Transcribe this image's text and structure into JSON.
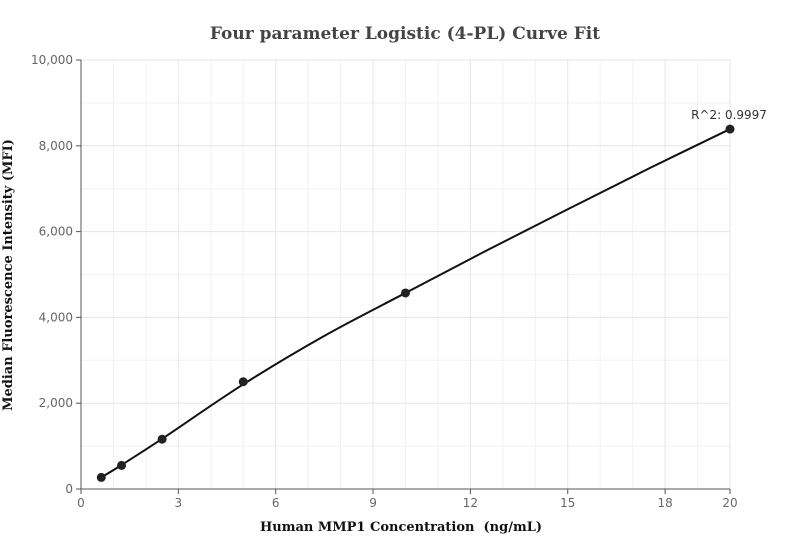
{
  "chart_data": {
    "type": "scatter",
    "title": "Four parameter Logistic (4-PL) Curve Fit",
    "xlabel": "Human MMP1 Concentration  (ng/mL)",
    "ylabel": "Median Fluorescence Intensity (MFI)",
    "xlim": [
      0,
      20
    ],
    "ylim": [
      0,
      10000
    ],
    "x_ticks": [
      0,
      3,
      6,
      9,
      12,
      15,
      18,
      20
    ],
    "x_tick_labels": [
      "0",
      "3",
      "6",
      "9",
      "12",
      "15",
      "18",
      "20"
    ],
    "y_ticks": [
      0,
      2000,
      4000,
      6000,
      8000,
      10000
    ],
    "y_tick_labels": [
      "0",
      "2,000",
      "4,000",
      "6,000",
      "8,000",
      "10,000"
    ],
    "grid": true,
    "series": [
      {
        "x": [
          0.625,
          1.25,
          2.5,
          5,
          10,
          20
        ],
        "y": [
          270,
          550,
          1160,
          2500,
          4570,
          8390
        ]
      }
    ],
    "fit_curve": {
      "x": [
        0.625,
        1.25,
        2.5,
        5,
        7.5,
        10,
        12.5,
        15,
        17.5,
        20
      ],
      "y": [
        270,
        560,
        1170,
        2440,
        3570,
        4570,
        5560,
        6520,
        7470,
        8390
      ]
    },
    "annotation": "R^2: 0.9997",
    "colors": {
      "points": "#222222",
      "curve": "#111111"
    }
  }
}
